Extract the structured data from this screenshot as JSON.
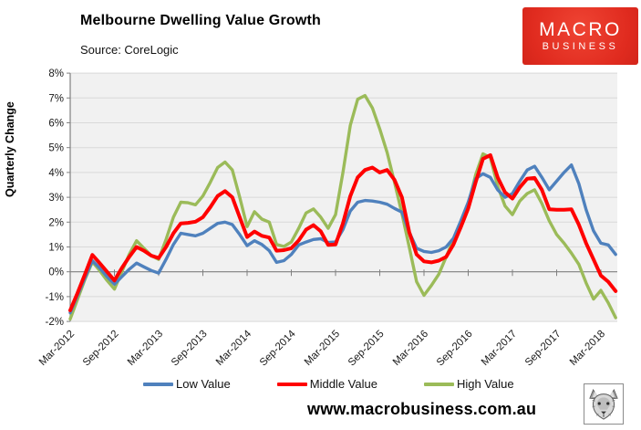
{
  "header": {
    "title": "Melbourne Dwelling Value Growth",
    "source": "Source: CoreLogic"
  },
  "logo": {
    "line1": "MACRO",
    "line2": "BUSINESS",
    "bg_color": "#e02b1f"
  },
  "footer": {
    "url": "www.macrobusiness.com.au"
  },
  "chart_data": {
    "type": "line",
    "title": "Melbourne Dwelling Value Growth",
    "subtitle": "Source: CoreLogic",
    "ylabel": "Quarterly Change",
    "xlabel": "",
    "ylim": [
      -2,
      8
    ],
    "grid": true,
    "legend_position": "bottom",
    "plot_bg": "#f1f1f1",
    "gridline_color": "#d9d9d9",
    "axis_color": "#808080",
    "x_start": "Mar-2012",
    "x_end": "May-2018",
    "x_frequency": "monthly",
    "x_tick_labels": [
      "Mar-2012",
      "Sep-2012",
      "Mar-2013",
      "Sep-2013",
      "Mar-2014",
      "Sep-2014",
      "Mar-2015",
      "Sep-2015",
      "Mar-2016",
      "Sep-2016",
      "Mar-2017",
      "Sep-2017",
      "Mar-2018"
    ],
    "x_tick_month_indices": [
      0,
      6,
      12,
      18,
      24,
      30,
      36,
      42,
      48,
      54,
      60,
      66,
      72
    ],
    "y_tick_labels": [
      "8%",
      "7%",
      "6%",
      "5%",
      "4%",
      "3%",
      "2%",
      "1%",
      "0%",
      "-1%",
      "-2%"
    ],
    "y_tick_values": [
      8,
      7,
      6,
      5,
      4,
      3,
      2,
      1,
      0,
      -1,
      -2
    ],
    "series": [
      {
        "name": "Low Value",
        "color": "#4f81bd",
        "values": [
          -1.65,
          -0.95,
          -0.25,
          0.45,
          0.15,
          -0.2,
          -0.5,
          -0.2,
          0.1,
          0.35,
          0.2,
          0.05,
          -0.05,
          0.5,
          1.1,
          1.55,
          1.5,
          1.45,
          1.55,
          1.75,
          1.95,
          2.0,
          1.9,
          1.5,
          1.05,
          1.25,
          1.1,
          0.85,
          0.38,
          0.45,
          0.7,
          1.08,
          1.2,
          1.3,
          1.33,
          1.18,
          1.2,
          1.7,
          2.45,
          2.8,
          2.87,
          2.85,
          2.8,
          2.72,
          2.55,
          2.4,
          1.6,
          0.95,
          0.82,
          0.78,
          0.85,
          1.0,
          1.35,
          2.05,
          2.8,
          3.75,
          3.95,
          3.8,
          3.3,
          3.0,
          3.15,
          3.65,
          4.1,
          4.25,
          3.8,
          3.3,
          3.65,
          4.0,
          4.3,
          3.55,
          2.5,
          1.65,
          1.15,
          1.08,
          0.7
        ]
      },
      {
        "name": "Middle Value",
        "color": "#ff0000",
        "values": [
          -1.55,
          -0.85,
          -0.1,
          0.68,
          0.35,
          0.0,
          -0.35,
          0.15,
          0.6,
          1.0,
          0.85,
          0.65,
          0.55,
          1.0,
          1.55,
          1.95,
          1.97,
          2.02,
          2.2,
          2.6,
          3.05,
          3.25,
          3.0,
          2.2,
          1.4,
          1.62,
          1.45,
          1.38,
          0.85,
          0.87,
          0.95,
          1.26,
          1.7,
          1.88,
          1.63,
          1.08,
          1.1,
          1.95,
          3.05,
          3.8,
          4.1,
          4.2,
          4.0,
          4.1,
          3.7,
          3.0,
          1.6,
          0.7,
          0.42,
          0.38,
          0.45,
          0.6,
          1.1,
          1.8,
          2.55,
          3.6,
          4.55,
          4.7,
          3.8,
          3.2,
          2.95,
          3.4,
          3.75,
          3.78,
          3.3,
          2.52,
          2.5,
          2.5,
          2.52,
          1.9,
          1.15,
          0.5,
          -0.15,
          -0.4,
          -0.78
        ]
      },
      {
        "name": "High Value",
        "color": "#9bbb59",
        "values": [
          -1.9,
          -1.1,
          -0.3,
          0.4,
          0.05,
          -0.35,
          -0.7,
          0.0,
          0.7,
          1.25,
          0.95,
          0.65,
          0.5,
          1.3,
          2.2,
          2.8,
          2.78,
          2.7,
          3.05,
          3.6,
          4.2,
          4.42,
          4.1,
          3.0,
          1.82,
          2.42,
          2.12,
          2.0,
          1.1,
          1.02,
          1.2,
          1.75,
          2.37,
          2.53,
          2.2,
          1.75,
          2.3,
          4.0,
          5.9,
          6.95,
          7.1,
          6.6,
          5.75,
          4.8,
          3.6,
          2.35,
          1.0,
          -0.4,
          -0.95,
          -0.55,
          -0.1,
          0.6,
          1.3,
          2.0,
          2.7,
          3.9,
          4.75,
          4.6,
          3.45,
          2.65,
          2.3,
          2.85,
          3.15,
          3.3,
          2.75,
          2.05,
          1.5,
          1.15,
          0.75,
          0.3,
          -0.45,
          -1.1,
          -0.75,
          -1.25,
          -1.85
        ]
      }
    ]
  }
}
